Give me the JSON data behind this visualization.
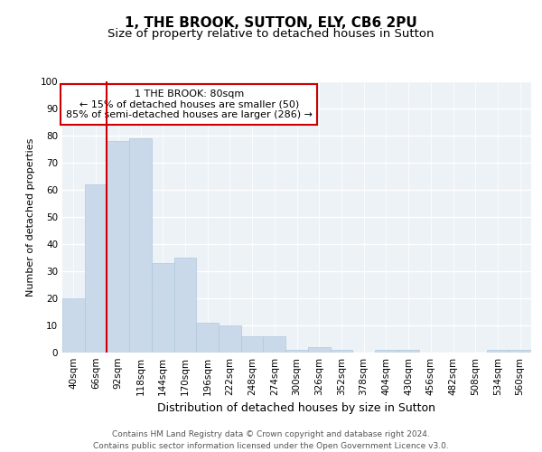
{
  "title1": "1, THE BROOK, SUTTON, ELY, CB6 2PU",
  "title2": "Size of property relative to detached houses in Sutton",
  "xlabel": "Distribution of detached houses by size in Sutton",
  "ylabel": "Number of detached properties",
  "bar_color": "#c9d9ea",
  "bar_edge_color": "#b0c8dc",
  "bar_width": 1.0,
  "categories": [
    "40sqm",
    "66sqm",
    "92sqm",
    "118sqm",
    "144sqm",
    "170sqm",
    "196sqm",
    "222sqm",
    "248sqm",
    "274sqm",
    "300sqm",
    "326sqm",
    "352sqm",
    "378sqm",
    "404sqm",
    "430sqm",
    "456sqm",
    "482sqm",
    "508sqm",
    "534sqm",
    "560sqm"
  ],
  "values": [
    20,
    62,
    78,
    79,
    33,
    35,
    11,
    10,
    6,
    6,
    1,
    2,
    1,
    0,
    1,
    1,
    0,
    0,
    0,
    1,
    1
  ],
  "vline_x_index": 1,
  "vline_color": "#cc0000",
  "ylim": [
    0,
    100
  ],
  "yticks": [
    0,
    10,
    20,
    30,
    40,
    50,
    60,
    70,
    80,
    90,
    100
  ],
  "annotation_text": "1 THE BROOK: 80sqm\n← 15% of detached houses are smaller (50)\n85% of semi-detached houses are larger (286) →",
  "annotation_box_color": "white",
  "annotation_box_edge_color": "#cc0000",
  "footer1": "Contains HM Land Registry data © Crown copyright and database right 2024.",
  "footer2": "Contains public sector information licensed under the Open Government Licence v3.0.",
  "bg_color": "#edf2f7",
  "grid_color": "white",
  "title_fontsize": 11,
  "subtitle_fontsize": 9.5,
  "ylabel_fontsize": 8,
  "xlabel_fontsize": 9,
  "tick_fontsize": 7.5,
  "annotation_fontsize": 8,
  "footer_fontsize": 6.5
}
